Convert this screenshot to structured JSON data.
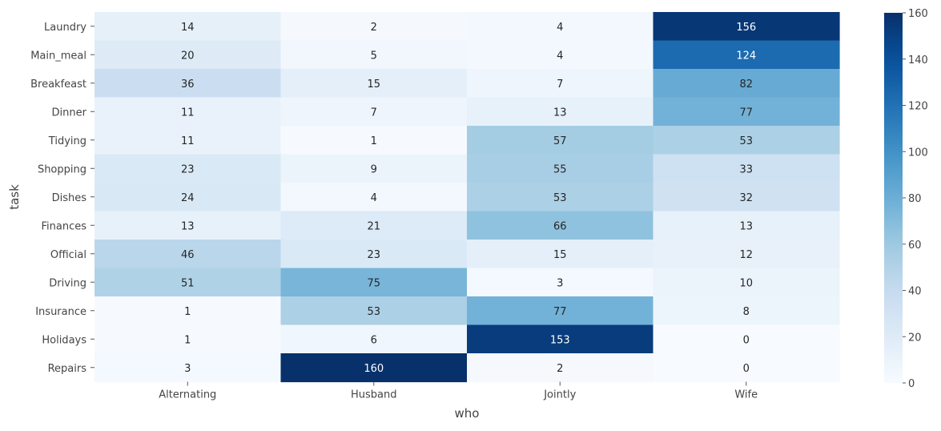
{
  "chart_data": {
    "type": "heatmap",
    "title": "",
    "xlabel": "who",
    "ylabel": "task",
    "x_categories": [
      "Alternating",
      "Husband",
      "Jointly",
      "Wife"
    ],
    "y_categories": [
      "Laundry",
      "Main_meal",
      "Breakfeast",
      "Dinner",
      "Tidying",
      "Shopping",
      "Dishes",
      "Finances",
      "Official",
      "Driving",
      "Insurance",
      "Holidays",
      "Repairs"
    ],
    "values": [
      [
        14,
        2,
        4,
        156
      ],
      [
        20,
        5,
        4,
        124
      ],
      [
        36,
        15,
        7,
        82
      ],
      [
        11,
        7,
        13,
        77
      ],
      [
        11,
        1,
        57,
        53
      ],
      [
        23,
        9,
        55,
        33
      ],
      [
        24,
        4,
        53,
        32
      ],
      [
        13,
        21,
        66,
        13
      ],
      [
        46,
        23,
        15,
        12
      ],
      [
        51,
        75,
        3,
        10
      ],
      [
        1,
        53,
        77,
        8
      ],
      [
        1,
        6,
        153,
        0
      ],
      [
        3,
        160,
        2,
        0
      ]
    ],
    "colorbar": {
      "min": 0,
      "max": 160,
      "ticks": [
        0,
        20,
        40,
        60,
        80,
        100,
        120,
        140,
        160
      ]
    },
    "colormap": "Blues",
    "annotations": true
  }
}
